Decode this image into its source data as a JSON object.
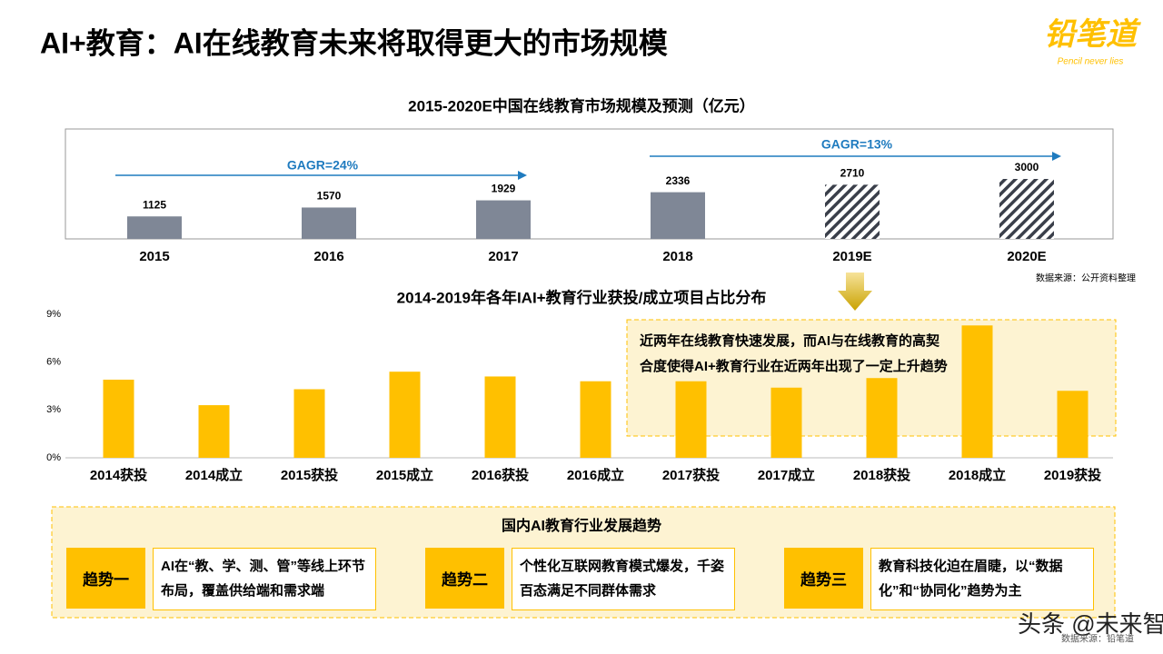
{
  "header": {
    "title": "AI+教育：AI在线教育未来将取得更大的市场规模",
    "logo": "铅笔道",
    "logo_tagline": "Pencil never lies"
  },
  "chart_data": [
    {
      "type": "bar",
      "title": "2015-2020E中国在线教育市场规模及预测（亿元）",
      "categories": [
        "2015",
        "2016",
        "2017",
        "2018",
        "2019E",
        "2020E"
      ],
      "values": [
        1125,
        1570,
        1929,
        2336,
        2710,
        3000
      ],
      "fill_style": [
        "solid",
        "solid",
        "solid",
        "solid",
        "hatched",
        "hatched"
      ],
      "color": "#7f8796",
      "annotations": [
        "GAGR=24%",
        "GAGR=13%"
      ],
      "source": "数据来源：公开资料整理"
    },
    {
      "type": "bar",
      "title": "2014-2019年各年IAI+教育行业获投/成立项目占比分布",
      "categories": [
        "2014获投",
        "2014成立",
        "2015获投",
        "2015成立",
        "2016获投",
        "2016成立",
        "2017获投",
        "2017成立",
        "2018获投",
        "2018成立",
        "2019获投"
      ],
      "values": [
        4.9,
        3.3,
        4.3,
        5.4,
        5.1,
        4.8,
        4.8,
        4.4,
        5.0,
        8.3,
        4.2
      ],
      "color": "#ffc000",
      "ylim": [
        0,
        9
      ],
      "yticks": [
        {
          "value": 0,
          "label": "0%"
        },
        {
          "value": 3,
          "label": "3%"
        },
        {
          "value": 6,
          "label": "6%"
        },
        {
          "value": 9,
          "label": "9%"
        }
      ],
      "grid": false,
      "annotation": "近两年在线教育快速发展，而AI与在线教育的高契合度使得AI+教育行业在近两年出现了一定上升趋势"
    }
  ],
  "trends": {
    "title": "国内AI教育行业发展趋势",
    "items": [
      {
        "label": "趋势一",
        "text": "AI在“教、学、测、管”等线上环节布局，覆盖供给端和需求端"
      },
      {
        "label": "趋势二",
        "text": "个性化互联网教育模式爆发，千姿百态满足不同群体需求"
      },
      {
        "label": "趋势三",
        "text": "教育科技化迫在眉睫，以“数据化”和“协同化”趋势为主"
      }
    ]
  },
  "footer": {
    "source": "数据来源：铅笔道",
    "watermark": "头条 @未来智库"
  }
}
